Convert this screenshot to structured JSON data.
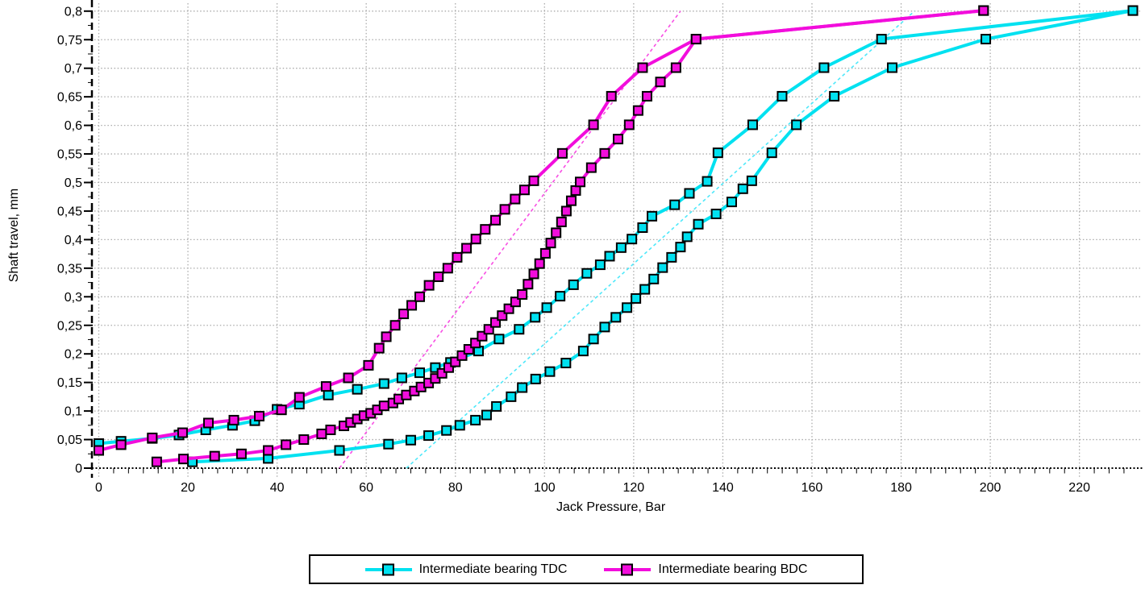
{
  "page": {
    "background": "#FFFFFF"
  },
  "chart_data": {
    "type": "line",
    "title": "",
    "xlabel": "Jack Pressure, Bar",
    "ylabel": "Shaft travel, mm",
    "xlim": [
      -1.5,
      234
    ],
    "ylim": [
      0,
      0.82
    ],
    "grid": "dotted",
    "grid_color": "#ABABAB",
    "axis_color": "#000000",
    "legend_position": "bottom",
    "x_ticks": [
      0,
      20,
      40,
      60,
      80,
      100,
      120,
      140,
      160,
      180,
      200,
      220
    ],
    "x_tick_labels": [
      "0",
      "20",
      "40",
      "60",
      "80",
      "100",
      "120",
      "140",
      "160",
      "180",
      "200",
      "220"
    ],
    "y_ticks": [
      0,
      0.05,
      0.1,
      0.15,
      0.2,
      0.25,
      0.3,
      0.35,
      0.4,
      0.45,
      0.5,
      0.55,
      0.6,
      0.65,
      0.7,
      0.75,
      0.8
    ],
    "y_tick_labels": [
      "0",
      "0,05",
      "0,1",
      "0,15",
      "0,2",
      "0,25",
      "0,3",
      "0,35",
      "0,4",
      "0,45",
      "0,5",
      "0,55",
      "0,6",
      "0,65",
      "0,7",
      "0,75",
      "0,8"
    ],
    "series": [
      {
        "name": "Intermediate bearing TDC",
        "color": "#00E1F0",
        "trend_color": "#4FE8FA",
        "marker": "square",
        "loading": [
          [
            21,
            0.011
          ],
          [
            38,
            0.017
          ],
          [
            54,
            0.031
          ],
          [
            65,
            0.042
          ],
          [
            70,
            0.049
          ],
          [
            74,
            0.057
          ],
          [
            78,
            0.066
          ],
          [
            81,
            0.075
          ],
          [
            84.5,
            0.084
          ],
          [
            87,
            0.093
          ],
          [
            89.2,
            0.108
          ],
          [
            92.5,
            0.125
          ],
          [
            95,
            0.141
          ],
          [
            98,
            0.156
          ],
          [
            101.2,
            0.169
          ],
          [
            104.8,
            0.184
          ],
          [
            108.7,
            0.205
          ],
          [
            111,
            0.226
          ],
          [
            113.5,
            0.247
          ],
          [
            116,
            0.264
          ],
          [
            118.5,
            0.281
          ],
          [
            120.5,
            0.297
          ],
          [
            122.5,
            0.313
          ],
          [
            124.5,
            0.331
          ],
          [
            126.5,
            0.351
          ],
          [
            128.5,
            0.369
          ],
          [
            130.5,
            0.387
          ],
          [
            132,
            0.405
          ],
          [
            134.5,
            0.427
          ],
          [
            138.5,
            0.445
          ],
          [
            142,
            0.466
          ],
          [
            144.5,
            0.489
          ],
          [
            146.5,
            0.503
          ],
          [
            151,
            0.552
          ],
          [
            156.5,
            0.601
          ],
          [
            165,
            0.651
          ],
          [
            178,
            0.701
          ],
          [
            199,
            0.751
          ],
          [
            232,
            0.801
          ]
        ],
        "unloading": [
          [
            0,
            0.043
          ],
          [
            5,
            0.047
          ],
          [
            12,
            0.052
          ],
          [
            18,
            0.058
          ],
          [
            24,
            0.067
          ],
          [
            30,
            0.075
          ],
          [
            35,
            0.083
          ],
          [
            40,
            0.103
          ],
          [
            45,
            0.112
          ],
          [
            51.5,
            0.128
          ],
          [
            58,
            0.138
          ],
          [
            64,
            0.148
          ],
          [
            68,
            0.158
          ],
          [
            72,
            0.167
          ],
          [
            75.5,
            0.176
          ],
          [
            78.9,
            0.185
          ],
          [
            85.2,
            0.205
          ],
          [
            89.8,
            0.226
          ],
          [
            94.3,
            0.243
          ],
          [
            97.9,
            0.264
          ],
          [
            100.5,
            0.281
          ],
          [
            103.5,
            0.301
          ],
          [
            106.5,
            0.321
          ],
          [
            109.5,
            0.341
          ],
          [
            112.5,
            0.356
          ],
          [
            114.6,
            0.371
          ],
          [
            117.2,
            0.386
          ],
          [
            119.6,
            0.401
          ],
          [
            122,
            0.421
          ],
          [
            124.1,
            0.441
          ],
          [
            129.2,
            0.461
          ],
          [
            132.5,
            0.481
          ],
          [
            136.5,
            0.502
          ],
          [
            138.9,
            0.552
          ],
          [
            146.7,
            0.601
          ],
          [
            153.3,
            0.651
          ],
          [
            162.7,
            0.701
          ],
          [
            175.6,
            0.751
          ],
          [
            232,
            0.801
          ]
        ],
        "trend_line": {
          "style": "dashed",
          "from": [
            69,
            0
          ],
          "to": [
            183,
            0.8
          ]
        }
      },
      {
        "name": "Intermediate bearing BDC",
        "color": "#F20DDC",
        "trend_color": "#F84FE4",
        "marker": "square",
        "loading": [
          [
            13,
            0.011
          ],
          [
            19,
            0.016
          ],
          [
            26,
            0.021
          ],
          [
            32,
            0.025
          ],
          [
            38,
            0.031
          ],
          [
            42,
            0.041
          ],
          [
            46,
            0.05
          ],
          [
            50,
            0.06
          ],
          [
            52,
            0.067
          ],
          [
            55,
            0.074
          ],
          [
            56.5,
            0.08
          ],
          [
            58,
            0.086
          ],
          [
            59.5,
            0.092
          ],
          [
            61,
            0.096
          ],
          [
            62.5,
            0.102
          ],
          [
            64,
            0.109
          ],
          [
            66,
            0.114
          ],
          [
            67.3,
            0.121
          ],
          [
            69,
            0.128
          ],
          [
            70.8,
            0.135
          ],
          [
            72.3,
            0.142
          ],
          [
            74,
            0.149
          ],
          [
            75.5,
            0.157
          ],
          [
            77,
            0.166
          ],
          [
            78.5,
            0.176
          ],
          [
            80,
            0.186
          ],
          [
            81.5,
            0.197
          ],
          [
            83,
            0.208
          ],
          [
            84.5,
            0.219
          ],
          [
            86,
            0.231
          ],
          [
            87.5,
            0.243
          ],
          [
            89,
            0.255
          ],
          [
            90.5,
            0.267
          ],
          [
            92,
            0.279
          ],
          [
            93.5,
            0.291
          ],
          [
            95,
            0.304
          ],
          [
            96.3,
            0.322
          ],
          [
            97.6,
            0.34
          ],
          [
            98.9,
            0.358
          ],
          [
            100.2,
            0.376
          ],
          [
            101.4,
            0.394
          ],
          [
            102.6,
            0.412
          ],
          [
            103.8,
            0.431
          ],
          [
            104.9,
            0.45
          ],
          [
            106,
            0.468
          ],
          [
            107,
            0.486
          ],
          [
            108,
            0.501
          ],
          [
            110.5,
            0.526
          ],
          [
            113.5,
            0.551
          ],
          [
            116.5,
            0.576
          ],
          [
            119,
            0.601
          ],
          [
            121,
            0.626
          ],
          [
            123,
            0.651
          ],
          [
            126,
            0.676
          ],
          [
            129.5,
            0.701
          ],
          [
            134,
            0.751
          ],
          [
            198.5,
            0.801
          ]
        ],
        "unloading": [
          [
            0,
            0.031
          ],
          [
            5,
            0.041
          ],
          [
            12,
            0.053
          ],
          [
            18.8,
            0.062
          ],
          [
            24.6,
            0.079
          ],
          [
            30.3,
            0.084
          ],
          [
            36,
            0.091
          ],
          [
            41,
            0.102
          ],
          [
            45,
            0.124
          ],
          [
            51,
            0.143
          ],
          [
            56,
            0.158
          ],
          [
            60.5,
            0.18
          ],
          [
            62.9,
            0.21
          ],
          [
            64.5,
            0.23
          ],
          [
            66.5,
            0.25
          ],
          [
            68.4,
            0.27
          ],
          [
            70.2,
            0.285
          ],
          [
            72,
            0.3
          ],
          [
            74.1,
            0.32
          ],
          [
            76.2,
            0.335
          ],
          [
            78.3,
            0.35
          ],
          [
            80.4,
            0.369
          ],
          [
            82.5,
            0.385
          ],
          [
            84.6,
            0.401
          ],
          [
            86.7,
            0.418
          ],
          [
            89,
            0.434
          ],
          [
            91.1,
            0.453
          ],
          [
            93.4,
            0.471
          ],
          [
            95.5,
            0.487
          ],
          [
            97.6,
            0.503
          ],
          [
            104,
            0.551
          ],
          [
            111,
            0.601
          ],
          [
            115,
            0.651
          ],
          [
            122,
            0.701
          ],
          [
            134,
            0.751
          ],
          [
            198.5,
            0.801
          ]
        ],
        "trend_line": {
          "style": "dashed",
          "from": [
            54,
            0
          ],
          "to": [
            130.5,
            0.8
          ]
        }
      }
    ]
  }
}
